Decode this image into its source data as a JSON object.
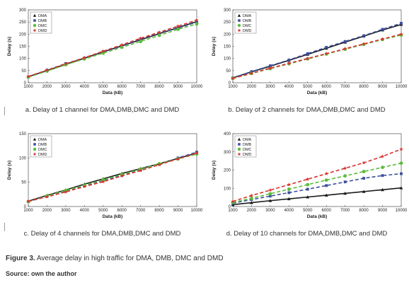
{
  "figure": {
    "caption_label": "Figure 3.",
    "caption_text": "Average delay in high traffic for DMA, DMB, DMC and DMD",
    "source": "Source: own the author"
  },
  "legend_labels": [
    "DMA",
    "DMB",
    "DMC",
    "DMD"
  ],
  "series_colors": {
    "DMA": "#1a1a1a",
    "DMB": "#3c4f9e",
    "DMC": "#5bbd3a",
    "DMD": "#d8322c"
  },
  "chart_data": [
    {
      "type": "line",
      "caption": "a. Delay of 1 channel for DMA,DMB,DMC and DMD",
      "xlabel": "Data (kB)",
      "ylabel": "Delay (s)",
      "xlim": [
        1000,
        10000
      ],
      "ylim": [
        0,
        300
      ],
      "xticks": [
        1000,
        2000,
        3000,
        4000,
        5000,
        6000,
        7000,
        8000,
        9000,
        10000
      ],
      "yticks": [
        0,
        50,
        100,
        150,
        200,
        250,
        300
      ],
      "legend": "top-left",
      "grid": false,
      "x": [
        1000,
        2000,
        3000,
        4000,
        5000,
        6000,
        7000,
        8000,
        9000,
        10000
      ],
      "series": [
        {
          "name": "DMA",
          "values": [
            25,
            50,
            76,
            101,
            127,
            152,
            177,
            202,
            227,
            252
          ]
        },
        {
          "name": "DMB",
          "values": [
            24,
            52,
            79,
            102,
            128,
            150,
            180,
            205,
            225,
            250
          ]
        },
        {
          "name": "DMC",
          "values": [
            23,
            48,
            74,
            98,
            122,
            146,
            170,
            195,
            220,
            242
          ]
        },
        {
          "name": "DMD",
          "values": [
            26,
            52,
            78,
            103,
            130,
            156,
            183,
            208,
            233,
            258
          ]
        }
      ]
    },
    {
      "type": "line",
      "caption": "b. Delay of 2 channels for DMA,DMB,DMC and DMD",
      "xlabel": "Data (kB)",
      "ylabel": "Delay (s)",
      "xlim": [
        1000,
        10000
      ],
      "ylim": [
        0,
        300
      ],
      "xticks": [
        1000,
        2000,
        3000,
        4000,
        5000,
        6000,
        7000,
        8000,
        9000,
        10000
      ],
      "yticks": [
        0,
        50,
        100,
        150,
        200,
        250,
        300
      ],
      "legend": "top-left",
      "grid": false,
      "x": [
        1000,
        2000,
        3000,
        4000,
        5000,
        6000,
        7000,
        8000,
        9000,
        10000
      ],
      "series": [
        {
          "name": "DMA",
          "values": [
            20,
            45,
            68,
            92,
            117,
            142,
            167,
            192,
            217,
            240
          ]
        },
        {
          "name": "DMB",
          "values": [
            20,
            46,
            70,
            94,
            120,
            146,
            170,
            194,
            220,
            245
          ]
        },
        {
          "name": "DMC",
          "values": [
            18,
            38,
            58,
            78,
            98,
            118,
            138,
            158,
            178,
            196
          ]
        },
        {
          "name": "DMD",
          "values": [
            18,
            39,
            60,
            80,
            100,
            120,
            140,
            160,
            180,
            200
          ]
        }
      ]
    },
    {
      "type": "line",
      "caption": "c. Delay of 4 channels for  DMA,DMB,DMC and DMD",
      "xlabel": "Data (kB)",
      "ylabel": "Delay (s)",
      "xlim": [
        1000,
        10000
      ],
      "ylim": [
        0,
        150
      ],
      "xticks": [
        1000,
        2000,
        3000,
        4000,
        5000,
        6000,
        7000,
        8000,
        9000,
        10000
      ],
      "yticks": [
        0,
        50,
        100,
        150
      ],
      "legend": "top-left",
      "grid": false,
      "x": [
        1000,
        2000,
        3000,
        4000,
        5000,
        6000,
        7000,
        8000,
        9000,
        10000
      ],
      "series": [
        {
          "name": "DMA",
          "values": [
            11,
            23,
            34,
            46,
            57,
            68,
            78,
            88,
            99,
            110
          ]
        },
        {
          "name": "DMB",
          "values": [
            10,
            21,
            32,
            43,
            54,
            64,
            75,
            87,
            100,
            112
          ]
        },
        {
          "name": "DMC",
          "values": [
            10,
            22,
            33,
            44,
            55,
            66,
            77,
            88,
            98,
            108
          ]
        },
        {
          "name": "DMD",
          "values": [
            11,
            20,
            30,
            41,
            51,
            63,
            74,
            86,
            98,
            110
          ]
        }
      ]
    },
    {
      "type": "line",
      "caption": "d. Delay of 10 channels for DMA,DMB,DMC and DMD",
      "xlabel": "Data (kB)",
      "ylabel": "Delay (s)",
      "xlim": [
        1000,
        10000
      ],
      "ylim": [
        0,
        400
      ],
      "xticks": [
        1000,
        2000,
        3000,
        4000,
        5000,
        6000,
        7000,
        8000,
        9000,
        10000
      ],
      "yticks": [
        0,
        100,
        200,
        300,
        400
      ],
      "legend": "top-left",
      "grid": false,
      "x": [
        1000,
        2000,
        3000,
        4000,
        5000,
        6000,
        7000,
        8000,
        9000,
        10000
      ],
      "series": [
        {
          "name": "DMA",
          "values": [
            10,
            21,
            32,
            42,
            52,
            62,
            72,
            82,
            92,
            102
          ]
        },
        {
          "name": "DMB",
          "values": [
            18,
            38,
            57,
            76,
            95,
            115,
            135,
            155,
            170,
            180
          ]
        },
        {
          "name": "DMC",
          "values": [
            22,
            45,
            70,
            95,
            120,
            145,
            168,
            192,
            215,
            238
          ]
        },
        {
          "name": "DMD",
          "values": [
            28,
            60,
            90,
            120,
            150,
            180,
            210,
            240,
            275,
            315
          ]
        }
      ]
    }
  ]
}
